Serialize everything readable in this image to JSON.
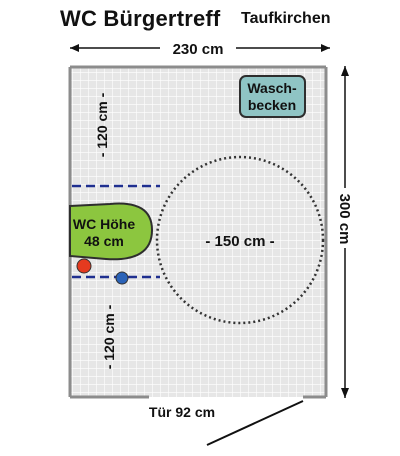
{
  "title": {
    "main": "WC Bürgertreff",
    "sub": "Taufkirchen"
  },
  "dimensions": {
    "width_label": "230 cm",
    "height_label": "300 cm",
    "door_label": "Tür 92 cm",
    "turning_circle_label": "- 150 cm -",
    "clearance_top_label": "- 120 cm -",
    "clearance_bottom_label": "- 120 cm -"
  },
  "fixtures": {
    "sink_label_line1": "Wasch-",
    "sink_label_line2": "becken",
    "wc_label_line1": "WC Höhe",
    "wc_label_line2": "48 cm"
  },
  "colors": {
    "tile_fill": "#e6e6e6",
    "tile_grid": "#ffffff",
    "sink_fill": "#8fc4c4",
    "wc_fill": "#8cc63f",
    "dashed_line": "#1f2f8f",
    "red_button": "#e53a1f",
    "blue_button": "#2b63b8",
    "circle_stroke": "#333333"
  }
}
